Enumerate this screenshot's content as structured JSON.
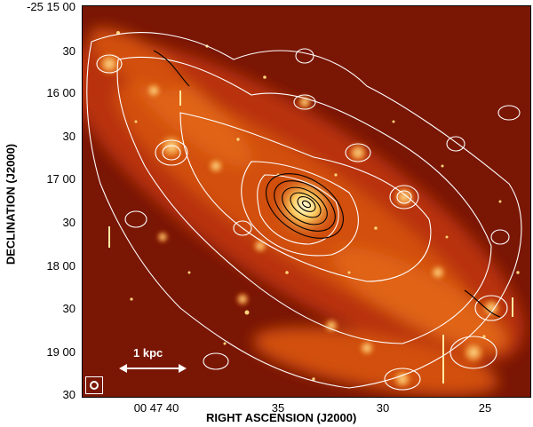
{
  "axes": {
    "x_title": "RIGHT ASCENSION (J2000)",
    "y_title": "DECLINATION (J2000)",
    "x_ticks": [
      "00 47 40",
      "35",
      "30",
      "25"
    ],
    "y_ticks": [
      "-25 15 00",
      "30",
      "16 00",
      "30",
      "17 00",
      "30",
      "18 00",
      "30",
      "19 00",
      "30"
    ]
  },
  "scale_bar": {
    "label": "1 kpc"
  },
  "colors": {
    "background": "#8a1a04",
    "emission": "#e86a1a",
    "bright": "#ffd060",
    "contour_white": "#ffffff",
    "contour_black": "#000000"
  }
}
